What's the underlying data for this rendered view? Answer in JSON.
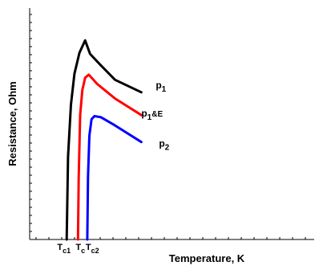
{
  "chart_data": {
    "type": "line",
    "title": "",
    "xlabel": "Temperature, K",
    "ylabel": "Resistance, Ohm",
    "xlim": [
      0,
      400
    ],
    "ylim": [
      0,
      100
    ],
    "grid": false,
    "x_ticks": [
      {
        "main": "T",
        "sub": "c1",
        "x": 50
      },
      {
        "main": "T",
        "sub": "c",
        "x": 68
      },
      {
        "main": "T",
        "sub": "c2",
        "x": 81
      }
    ],
    "series": [
      {
        "name": "p1",
        "label_main": "p",
        "label_sub": "1",
        "label_suffix": "",
        "color": "#000000",
        "points": [
          [
            52,
            0
          ],
          [
            54,
            40
          ],
          [
            58,
            65
          ],
          [
            63,
            80
          ],
          [
            70,
            90
          ],
          [
            78,
            96
          ],
          [
            85,
            89.5
          ],
          [
            100,
            84
          ],
          [
            120,
            77
          ],
          [
            157,
            71
          ]
        ]
      },
      {
        "name": "p1&E",
        "label_main": "p",
        "label_sub": "1",
        "label_suffix": "&E",
        "color": "#ff0000",
        "points": [
          [
            68,
            0
          ],
          [
            69,
            30
          ],
          [
            71,
            60
          ],
          [
            74,
            72
          ],
          [
            78,
            78
          ],
          [
            83,
            79.5
          ],
          [
            95,
            75
          ],
          [
            120,
            68
          ],
          [
            157,
            60
          ]
        ]
      },
      {
        "name": "p2",
        "label_main": "p",
        "label_sub": "2",
        "label_suffix": "",
        "color": "#0000ff",
        "points": [
          [
            81,
            0
          ],
          [
            82,
            30
          ],
          [
            84,
            50
          ],
          [
            87,
            58
          ],
          [
            91,
            59.5
          ],
          [
            100,
            59
          ],
          [
            120,
            55
          ],
          [
            157,
            47
          ]
        ]
      }
    ]
  }
}
